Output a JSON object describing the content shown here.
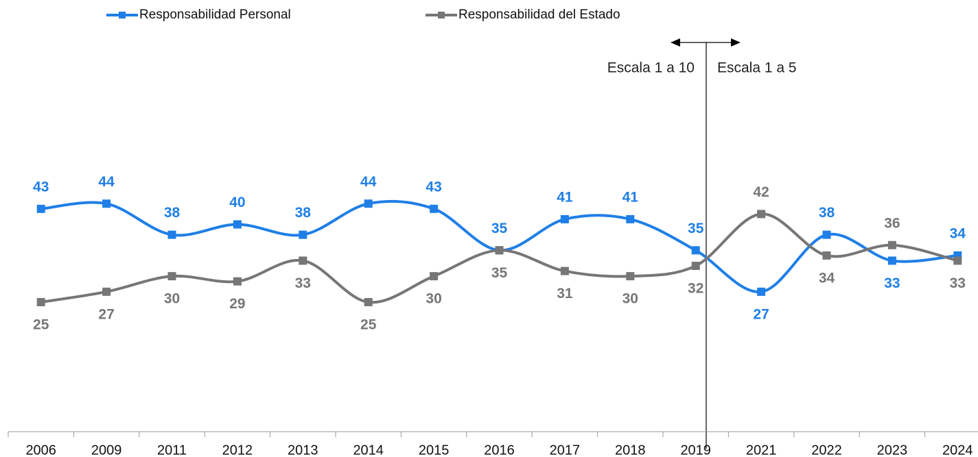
{
  "chart_data": {
    "type": "line",
    "categories": [
      "2006",
      "2009",
      "2011",
      "2012",
      "2013",
      "2014",
      "2015",
      "2016",
      "2017",
      "2018",
      "2019",
      "2021",
      "2022",
      "2023",
      "2024"
    ],
    "series": [
      {
        "name": "Responsabilidad Personal",
        "color": "#1f7fe6",
        "values": [
          43,
          44,
          38,
          40,
          38,
          44,
          43,
          35,
          41,
          41,
          35,
          27,
          38,
          33,
          34
        ]
      },
      {
        "name": "Responsabilidad del Estado",
        "color": "#767676",
        "values": [
          25,
          27,
          30,
          29,
          33,
          25,
          30,
          35,
          31,
          30,
          32,
          42,
          34,
          36,
          33
        ]
      }
    ],
    "ylim": [
      0,
      80
    ],
    "annotations": [
      "Escala 1 a 10",
      "Escala 1 a 5"
    ],
    "legend": "top"
  }
}
